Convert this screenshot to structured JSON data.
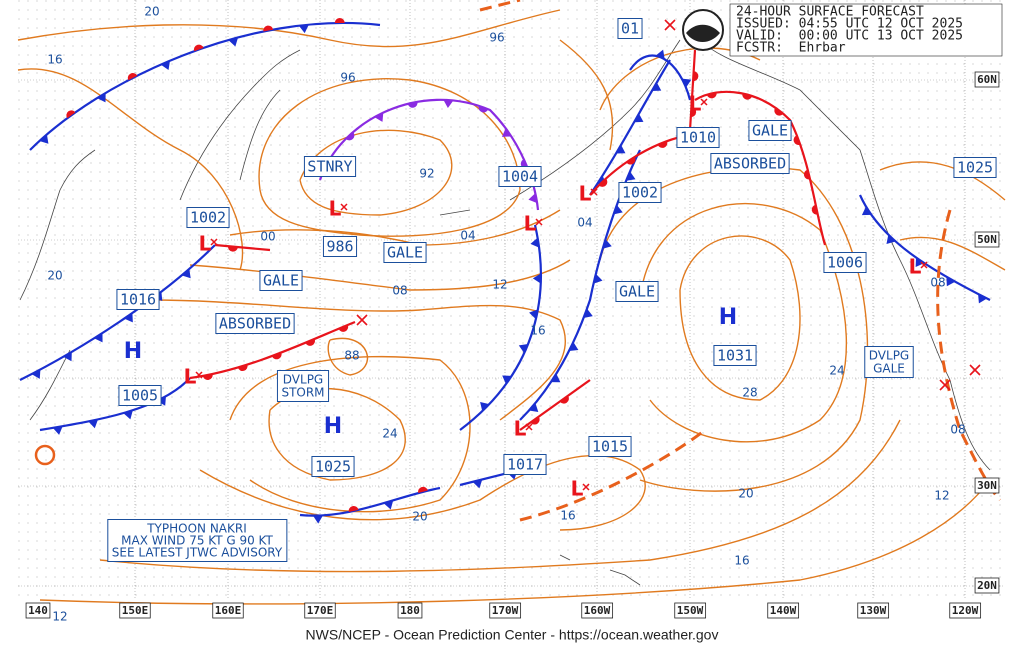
{
  "header": {
    "lines": [
      "24-HOUR SURFACE FORECAST",
      "ISSUED: 04:55 UTC 12 OCT 2025",
      "VALID:  00:00 UTC 13 OCT 2025",
      "FCSTR:  Ehrbar"
    ]
  },
  "footer": "NWS/NCEP - Ocean Prediction Center - https://ocean.weather.gov",
  "longitude_labels": [
    "140",
    "150E",
    "160E",
    "170E",
    "180",
    "170W",
    "160W",
    "150W",
    "140W",
    "130W",
    "120W"
  ],
  "latitude_labels": [
    "60N",
    "50N",
    "30N",
    "20N"
  ],
  "boxed_labels": [
    "STNRY",
    "1002",
    "986",
    "GALE",
    "GALE",
    "ABSORBED",
    "1016",
    "1005",
    "1025",
    "1004",
    "1002",
    "1017",
    "1015",
    "01",
    "1010",
    "GALE",
    "ABSORBED",
    "1025",
    "1006",
    "1031",
    "GALE"
  ],
  "dvlpg_storm": [
    "DVLPG",
    "STORM"
  ],
  "dvlpg_gale": [
    "DVLPG",
    "GALE"
  ],
  "typhoon_note": [
    "TYPHOON NAKRI",
    "MAX WIND 75 KT G 90 KT",
    "SEE LATEST JTWC ADVISORY"
  ],
  "isobar_labels": [
    "20",
    "16",
    "96",
    "96",
    "92",
    "00",
    "04",
    "08",
    "12",
    "16",
    "88",
    "24",
    "20",
    "04",
    "16",
    "28",
    "24",
    "20",
    "16",
    "12",
    "08",
    "08",
    "20",
    "12"
  ],
  "highs": [
    "H",
    "H",
    "H"
  ],
  "lows": [
    "L",
    "L",
    "L",
    "L",
    "L",
    "L",
    "L",
    "L",
    "L"
  ]
}
